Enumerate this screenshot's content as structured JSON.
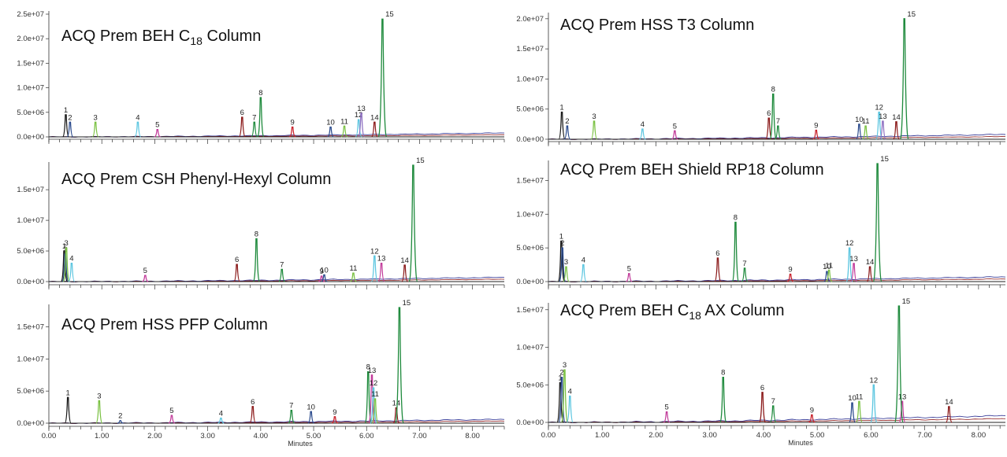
{
  "figure": {
    "column_title": "Minutes"
  },
  "chart_data": [
    {
      "type": "line",
      "title": "ACQ Prem BEH C18 Column",
      "title_parts": [
        "ACQ Prem BEH C",
        "18",
        " Column"
      ],
      "xlabel": "",
      "ylabel": "",
      "xlim": [
        0,
        8.6
      ],
      "ylim": [
        -100000.0,
        25000000.0
      ],
      "y_ticks": [
        "0.0e+00",
        "5.0e+06",
        "1.0e+07",
        "1.5e+07",
        "2.0e+07",
        "2.5e+07"
      ],
      "y_tick_values": [
        0,
        5000000.0,
        10000000.0,
        15000000.0,
        20000000.0,
        25000000.0
      ],
      "x_ticks": [],
      "grid": false,
      "peaks": [
        {
          "label": "1",
          "x": 0.32,
          "height": 4500000.0,
          "color": "#1a1a1a"
        },
        {
          "label": "2",
          "x": 0.4,
          "height": 3000000.0,
          "color": "#2a4a8c"
        },
        {
          "label": "3",
          "x": 0.88,
          "height": 3000000.0,
          "color": "#7ac142"
        },
        {
          "label": "4",
          "x": 1.68,
          "height": 3000000.0,
          "color": "#5cc6e0"
        },
        {
          "label": "5",
          "x": 2.05,
          "height": 1500000.0,
          "color": "#c23b9a"
        },
        {
          "label": "6",
          "x": 3.65,
          "height": 4000000.0,
          "color": "#8b1a1a"
        },
        {
          "label": "7",
          "x": 3.88,
          "height": 3000000.0,
          "color": "#1e8a3c"
        },
        {
          "label": "8",
          "x": 4.0,
          "height": 8000000.0,
          "color": "#1e8a3c"
        },
        {
          "label": "9",
          "x": 4.6,
          "height": 2000000.0,
          "color": "#c8202a"
        },
        {
          "label": "10",
          "x": 5.32,
          "height": 2000000.0,
          "color": "#2a4a8c"
        },
        {
          "label": "11",
          "x": 5.58,
          "height": 2200000.0,
          "color": "#7ac142"
        },
        {
          "label": "12",
          "x": 5.85,
          "height": 3500000.0,
          "color": "#5cc6e0"
        },
        {
          "label": "13",
          "x": 5.9,
          "height": 4800000.0,
          "color": "#8e6fc1"
        },
        {
          "label": "14",
          "x": 6.15,
          "height": 3000000.0,
          "color": "#8b1a1a"
        },
        {
          "label": "15",
          "x": 6.3,
          "height": 24000000.0,
          "color": "#1e8a3c"
        }
      ],
      "baseline_drift": 800000.0
    },
    {
      "type": "line",
      "title": "ACQ Prem CSH Phenyl-Hexyl Column",
      "title_parts": [
        "ACQ Prem CSH Phenyl-Hexyl Column",
        "",
        ""
      ],
      "xlabel": "",
      "ylabel": "",
      "xlim": [
        0,
        8.6
      ],
      "ylim": [
        -100000.0,
        19000000.0
      ],
      "y_ticks": [
        "0.0e+00",
        "5.0e+06",
        "1.0e+07",
        "1.5e+07"
      ],
      "y_tick_values": [
        0,
        5000000.0,
        10000000.0,
        15000000.0
      ],
      "x_ticks": [],
      "grid": false,
      "peaks": [
        {
          "label": "1",
          "x": 0.29,
          "height": 5000000.0,
          "color": "#1a1a1a"
        },
        {
          "label": "2",
          "x": 0.31,
          "height": 4500000.0,
          "color": "#2a4a8c"
        },
        {
          "label": "3",
          "x": 0.33,
          "height": 5500000.0,
          "color": "#7ac142"
        },
        {
          "label": "4",
          "x": 0.43,
          "height": 3000000.0,
          "color": "#5cc6e0"
        },
        {
          "label": "5",
          "x": 1.82,
          "height": 1000000.0,
          "color": "#c23b9a"
        },
        {
          "label": "6",
          "x": 3.55,
          "height": 2800000.0,
          "color": "#8b1a1a"
        },
        {
          "label": "7",
          "x": 4.4,
          "height": 2000000.0,
          "color": "#1e8a3c"
        },
        {
          "label": "8",
          "x": 3.92,
          "height": 7000000.0,
          "color": "#1e8a3c"
        },
        {
          "label": "9",
          "x": 5.15,
          "height": 900000.0,
          "color": "#c23b9a"
        },
        {
          "label": "10",
          "x": 5.2,
          "height": 1100000.0,
          "color": "#2a4a8c"
        },
        {
          "label": "11",
          "x": 5.75,
          "height": 1400000.0,
          "color": "#7ac142"
        },
        {
          "label": "12",
          "x": 6.15,
          "height": 4200000.0,
          "color": "#5cc6e0"
        },
        {
          "label": "13",
          "x": 6.28,
          "height": 3000000.0,
          "color": "#c23b9a"
        },
        {
          "label": "14",
          "x": 6.72,
          "height": 2700000.0,
          "color": "#8b1a1a"
        },
        {
          "label": "15",
          "x": 6.88,
          "height": 19000000.0,
          "color": "#1e8a3c"
        }
      ],
      "baseline_drift": 700000.0
    },
    {
      "type": "line",
      "title": "ACQ Prem HSS PFP Column",
      "title_parts": [
        "ACQ Prem HSS PFP Column",
        "",
        ""
      ],
      "xlabel": "Minutes",
      "ylabel": "",
      "xlim": [
        0,
        8.6
      ],
      "ylim": [
        -200000.0,
        18000000.0
      ],
      "y_ticks": [
        "0.0e+00",
        "5.0e+06",
        "1.0e+07",
        "1.5e+07"
      ],
      "y_tick_values": [
        0,
        5000000.0,
        10000000.0,
        15000000.0
      ],
      "x_ticks": [
        "0.00",
        "1.00",
        "2.00",
        "3.00",
        "4.00",
        "5.00",
        "6.00",
        "7.00",
        "8.00"
      ],
      "x_tick_values": [
        0,
        1,
        2,
        3,
        4,
        5,
        6,
        7,
        8
      ],
      "grid": false,
      "peaks": [
        {
          "label": "1",
          "x": 0.36,
          "height": 4000000.0,
          "color": "#1a1a1a"
        },
        {
          "label": "3",
          "x": 0.95,
          "height": 3500000.0,
          "color": "#7ac142"
        },
        {
          "label": "2",
          "x": 1.35,
          "height": 400000.0,
          "color": "#2a4a8c"
        },
        {
          "label": "5",
          "x": 2.32,
          "height": 1200000.0,
          "color": "#c23b9a"
        },
        {
          "label": "4",
          "x": 3.25,
          "height": 800000.0,
          "color": "#5cc6e0"
        },
        {
          "label": "6",
          "x": 3.85,
          "height": 2600000.0,
          "color": "#8b1a1a"
        },
        {
          "label": "7",
          "x": 4.58,
          "height": 2000000.0,
          "color": "#1e8a3c"
        },
        {
          "label": "10",
          "x": 4.95,
          "height": 1800000.0,
          "color": "#2a4a8c"
        },
        {
          "label": "9",
          "x": 5.4,
          "height": 1000000.0,
          "color": "#c8202a"
        },
        {
          "label": "8",
          "x": 6.03,
          "height": 8000000.0,
          "color": "#1e8a3c"
        },
        {
          "label": "13",
          "x": 6.1,
          "height": 7500000.0,
          "color": "#c23b9a"
        },
        {
          "label": "12",
          "x": 6.13,
          "height": 5500000.0,
          "color": "#5cc6e0"
        },
        {
          "label": "11",
          "x": 6.16,
          "height": 3800000.0,
          "color": "#7ac142"
        },
        {
          "label": "14",
          "x": 6.56,
          "height": 2400000.0,
          "color": "#8b1a1a"
        },
        {
          "label": "15",
          "x": 6.62,
          "height": 18000000.0,
          "color": "#1e8a3c"
        }
      ],
      "baseline_drift": 600000.0
    },
    {
      "type": "line",
      "title": "ACQ Prem HSS T3 Column",
      "title_parts": [
        "ACQ Prem HSS T3 Column",
        "",
        ""
      ],
      "xlabel": "",
      "ylabel": "",
      "xlim": [
        0,
        8.5
      ],
      "ylim": [
        -200000.0,
        20500000.0
      ],
      "y_ticks": [
        "0.0e+00",
        "5.0e+06",
        "1.0e+07",
        "1.5e+07",
        "2.0e+07"
      ],
      "y_tick_values": [
        0,
        5000000.0,
        10000000.0,
        15000000.0,
        20000000.0
      ],
      "x_ticks": [],
      "grid": false,
      "peaks": [
        {
          "label": "1",
          "x": 0.25,
          "height": 4500000.0,
          "color": "#1a1a1a"
        },
        {
          "label": "2",
          "x": 0.35,
          "height": 2200000.0,
          "color": "#2a4a8c"
        },
        {
          "label": "3",
          "x": 0.85,
          "height": 3000000.0,
          "color": "#7ac142"
        },
        {
          "label": "4",
          "x": 1.75,
          "height": 1700000.0,
          "color": "#5cc6e0"
        },
        {
          "label": "5",
          "x": 2.35,
          "height": 1400000.0,
          "color": "#c23b9a"
        },
        {
          "label": "6",
          "x": 4.1,
          "height": 3500000.0,
          "color": "#8b1a1a"
        },
        {
          "label": "8",
          "x": 4.18,
          "height": 7500000.0,
          "color": "#1e8a3c"
        },
        {
          "label": "7",
          "x": 4.27,
          "height": 2200000.0,
          "color": "#1e8a3c"
        },
        {
          "label": "9",
          "x": 4.98,
          "height": 1500000.0,
          "color": "#c8202a"
        },
        {
          "label": "10",
          "x": 5.78,
          "height": 2500000.0,
          "color": "#2a4a8c"
        },
        {
          "label": "11",
          "x": 5.9,
          "height": 2200000.0,
          "color": "#7ac142"
        },
        {
          "label": "12",
          "x": 6.15,
          "height": 4500000.0,
          "color": "#5cc6e0"
        },
        {
          "label": "13",
          "x": 6.22,
          "height": 3000000.0,
          "color": "#8e6fc1"
        },
        {
          "label": "14",
          "x": 6.47,
          "height": 2900000.0,
          "color": "#8b1a1a"
        },
        {
          "label": "15",
          "x": 6.62,
          "height": 20000000.0,
          "color": "#1e8a3c"
        }
      ],
      "baseline_drift": 800000.0
    },
    {
      "type": "line",
      "title": "ACQ Prem BEH Shield RP18 Column",
      "title_parts": [
        "ACQ Prem BEH Shield RP18 Column",
        "",
        ""
      ],
      "xlabel": "",
      "ylabel": "",
      "xlim": [
        0,
        8.5
      ],
      "ylim": [
        -200000.0,
        17500000.0
      ],
      "y_ticks": [
        "0.0e+00",
        "5.0e+06",
        "1.0e+07",
        "1.5e+07"
      ],
      "y_tick_values": [
        0,
        5000000.0,
        10000000.0,
        15000000.0
      ],
      "x_ticks": [],
      "grid": false,
      "peaks": [
        {
          "label": "1",
          "x": 0.24,
          "height": 6000000.0,
          "color": "#1a1a1a"
        },
        {
          "label": "2",
          "x": 0.26,
          "height": 5000000.0,
          "color": "#2a4a8c"
        },
        {
          "label": "3",
          "x": 0.33,
          "height": 2200000.0,
          "color": "#7ac142"
        },
        {
          "label": "4",
          "x": 0.65,
          "height": 2500000.0,
          "color": "#5cc6e0"
        },
        {
          "label": "5",
          "x": 1.5,
          "height": 1200000.0,
          "color": "#c23b9a"
        },
        {
          "label": "6",
          "x": 3.15,
          "height": 3500000.0,
          "color": "#8b1a1a"
        },
        {
          "label": "8",
          "x": 3.48,
          "height": 8800000.0,
          "color": "#1e8a3c"
        },
        {
          "label": "7",
          "x": 3.65,
          "height": 2000000.0,
          "color": "#1e8a3c"
        },
        {
          "label": "9",
          "x": 4.5,
          "height": 1100000.0,
          "color": "#c8202a"
        },
        {
          "label": "10",
          "x": 5.18,
          "height": 1500000.0,
          "color": "#2a4a8c"
        },
        {
          "label": "11",
          "x": 5.22,
          "height": 1700000.0,
          "color": "#7ac142"
        },
        {
          "label": "12",
          "x": 5.6,
          "height": 5000000.0,
          "color": "#5cc6e0"
        },
        {
          "label": "13",
          "x": 5.68,
          "height": 2700000.0,
          "color": "#c23b9a"
        },
        {
          "label": "14",
          "x": 5.98,
          "height": 2200000.0,
          "color": "#8b1a1a"
        },
        {
          "label": "15",
          "x": 6.12,
          "height": 17500000.0,
          "color": "#1e8a3c"
        }
      ],
      "baseline_drift": 700000.0
    },
    {
      "type": "line",
      "title": "ACQ Prem BEH C18 AX Column",
      "title_parts": [
        "ACQ Prem BEH C",
        "18",
        " AX Column"
      ],
      "xlabel": "Minutes",
      "ylabel": "",
      "xlim": [
        0,
        8.5
      ],
      "ylim": [
        -200000.0,
        15500000.0
      ],
      "y_ticks": [
        "0.0e+00",
        "5.0e+06",
        "1.0e+07",
        "1.5e+07"
      ],
      "y_tick_values": [
        0,
        5000000.0,
        10000000.0,
        15000000.0
      ],
      "x_ticks": [
        "0.00",
        "1.00",
        "2.00",
        "3.00",
        "4.00",
        "5.00",
        "6.00",
        "7.00",
        "8.00"
      ],
      "x_tick_values": [
        0,
        1,
        2,
        3,
        4,
        5,
        6,
        7,
        8
      ],
      "grid": false,
      "peaks": [
        {
          "label": "1",
          "x": 0.22,
          "height": 5300000.0,
          "color": "#1a1a1a"
        },
        {
          "label": "2",
          "x": 0.25,
          "height": 6000000.0,
          "color": "#2a4a8c"
        },
        {
          "label": "3",
          "x": 0.3,
          "height": 7000000.0,
          "color": "#7ac142"
        },
        {
          "label": "4",
          "x": 0.4,
          "height": 3500000.0,
          "color": "#5cc6e0"
        },
        {
          "label": "5",
          "x": 2.2,
          "height": 1400000.0,
          "color": "#c23b9a"
        },
        {
          "label": "8",
          "x": 3.25,
          "height": 6000000.0,
          "color": "#1e8a3c"
        },
        {
          "label": "6",
          "x": 3.98,
          "height": 4000000.0,
          "color": "#8b1a1a"
        },
        {
          "label": "7",
          "x": 4.18,
          "height": 2200000.0,
          "color": "#1e8a3c"
        },
        {
          "label": "9",
          "x": 4.9,
          "height": 1000000.0,
          "color": "#c8202a"
        },
        {
          "label": "10",
          "x": 5.65,
          "height": 2600000.0,
          "color": "#2a4a8c"
        },
        {
          "label": "11",
          "x": 5.78,
          "height": 2800000.0,
          "color": "#7ac142"
        },
        {
          "label": "12",
          "x": 6.05,
          "height": 5000000.0,
          "color": "#5cc6e0"
        },
        {
          "label": "13",
          "x": 6.58,
          "height": 2800000.0,
          "color": "#c23b9a"
        },
        {
          "label": "15",
          "x": 6.52,
          "height": 15500000.0,
          "color": "#1e8a3c"
        },
        {
          "label": "14",
          "x": 7.45,
          "height": 2100000.0,
          "color": "#8b1a1a"
        }
      ],
      "baseline_drift": 900000.0
    }
  ]
}
